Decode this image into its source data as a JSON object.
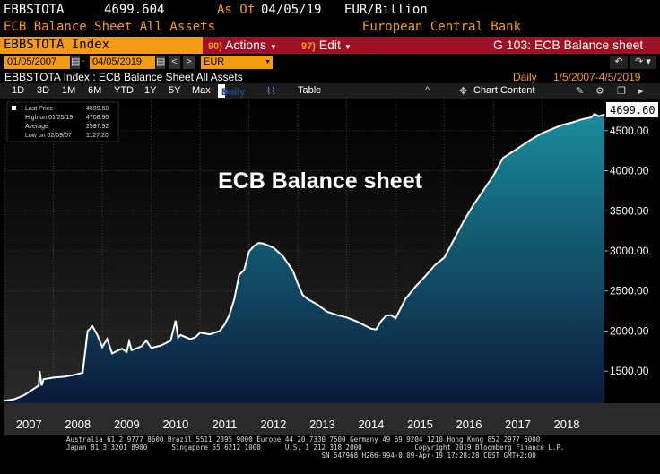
{
  "header": {
    "ticker": "EBBSTOTA",
    "last_value": "4699.604",
    "as_of_label": "As Of",
    "as_of_date": "04/05/19",
    "units": "EUR/Billion",
    "description": "ECB Balance Sheet All Assets",
    "source": "European Central Bank"
  },
  "toolbar": {
    "security": "EBBSTOTA Index",
    "actions_num": "90)",
    "actions_label": "Actions",
    "edit_num": "97)",
    "edit_label": "Edit",
    "function_title": "G 103: ECB Balance sheet"
  },
  "controls": {
    "start_date": "01/05/2007",
    "end_date": "04/05/2019",
    "currency": "EUR",
    "prev_label": "<",
    "next_label": ">",
    "undo_label": "↶",
    "redo_label": "↷"
  },
  "subheader": {
    "title": "EBBSTOTA Index : ECB Balance Sheet All Assets",
    "periodicity": "Daily",
    "range": "1/5/2007-4/5/2019"
  },
  "periods": [
    "1D",
    "3D",
    "1M",
    "6M",
    "YTD",
    "1Y",
    "5Y",
    "Max"
  ],
  "tabs": {
    "daily": "Daily",
    "table": "Table",
    "chart_content": "Chart Content"
  },
  "legend": {
    "last_price_label": "Last Price",
    "last_price_value": "4699.60",
    "high_label": "High on 01/25/19",
    "high_value": "4708.90",
    "avg_label": "Average",
    "avg_value": "2597.92",
    "low_label": "Low on 02/09/07",
    "low_value": "1127.20"
  },
  "footer": {
    "line1": "Australia 61 2 9777 8600 Brazil 5511 2395 9000 Europe 44 20 7330 7500 Germany 49 69 9204 1210 Hong Kong 852 2977 6000",
    "line2": "Japan 81 3 3201 8900      Singapore 65 6212 1000      U.S. 1 212 318 2000             Copyright 2019 Bloomberg Finance L.P.",
    "line3": "                                                               SN 547968 H266-994-0 09-Apr-19 17:28:28 CEST GMT+2:00"
  },
  "colors": {
    "accent": "#f39c12",
    "bar": "#a01025",
    "area_top": "#1a8c9c",
    "area_bottom": "#0a1a3a"
  },
  "chart_data": {
    "type": "area",
    "title": "ECB Balance sheet",
    "last_value_label": "4699.60",
    "xlim": [
      2007.0,
      2019.27
    ],
    "ylim": [
      1100,
      4900
    ],
    "grid": true,
    "x_ticks": [
      "2007",
      "2008",
      "2009",
      "2010",
      "2011",
      "2012",
      "2013",
      "2014",
      "2015",
      "2016",
      "2017",
      "2018"
    ],
    "y_ticks": [
      "1500.00",
      "2000.00",
      "2500.00",
      "3000.00",
      "3500.00",
      "4000.00",
      "4500.00"
    ],
    "y_tick_values": [
      1500,
      2000,
      2500,
      3000,
      3500,
      4000,
      4500
    ],
    "x": [
      2007.0,
      2007.2,
      2007.4,
      2007.6,
      2007.7,
      2007.72,
      2007.76,
      2007.8,
      2007.9,
      2008.0,
      2008.2,
      2008.4,
      2008.6,
      2008.7,
      2008.75,
      2008.8,
      2008.9,
      2009.0,
      2009.1,
      2009.2,
      2009.3,
      2009.4,
      2009.5,
      2009.55,
      2009.6,
      2009.8,
      2009.9,
      2010.0,
      2010.2,
      2010.4,
      2010.5,
      2010.55,
      2010.6,
      2010.8,
      2010.9,
      2011.0,
      2011.2,
      2011.4,
      2011.5,
      2011.6,
      2011.7,
      2011.8,
      2011.9,
      2012.0,
      2012.1,
      2012.2,
      2012.3,
      2012.5,
      2012.7,
      2012.9,
      2013.0,
      2013.1,
      2013.2,
      2013.4,
      2013.6,
      2013.8,
      2014.0,
      2014.2,
      2014.4,
      2014.5,
      2014.6,
      2014.7,
      2014.8,
      2014.9,
      2015.0,
      2015.2,
      2015.4,
      2015.6,
      2015.8,
      2016.0,
      2016.2,
      2016.4,
      2016.6,
      2016.8,
      2017.0,
      2017.2,
      2017.4,
      2017.6,
      2017.8,
      2018.0,
      2018.2,
      2018.4,
      2018.6,
      2018.8,
      2019.0,
      2019.07,
      2019.15,
      2019.27
    ],
    "y": [
      1130,
      1150,
      1200,
      1280,
      1320,
      1500,
      1320,
      1400,
      1410,
      1420,
      1430,
      1450,
      1480,
      2000,
      2030,
      2060,
      1950,
      1800,
      1900,
      1720,
      1750,
      1780,
      1740,
      1870,
      1760,
      1810,
      1880,
      1790,
      1820,
      1880,
      2130,
      1920,
      1950,
      1900,
      1920,
      1980,
      1960,
      2000,
      2080,
      2200,
      2400,
      2700,
      2760,
      2990,
      3060,
      3100,
      3090,
      3040,
      2930,
      2750,
      2590,
      2450,
      2400,
      2330,
      2240,
      2200,
      2170,
      2120,
      2060,
      2030,
      2020,
      2120,
      2190,
      2200,
      2160,
      2400,
      2550,
      2680,
      2820,
      2920,
      3150,
      3380,
      3580,
      3760,
      3940,
      4160,
      4240,
      4320,
      4400,
      4470,
      4520,
      4570,
      4600,
      4640,
      4665,
      4708,
      4680,
      4699.6
    ]
  }
}
